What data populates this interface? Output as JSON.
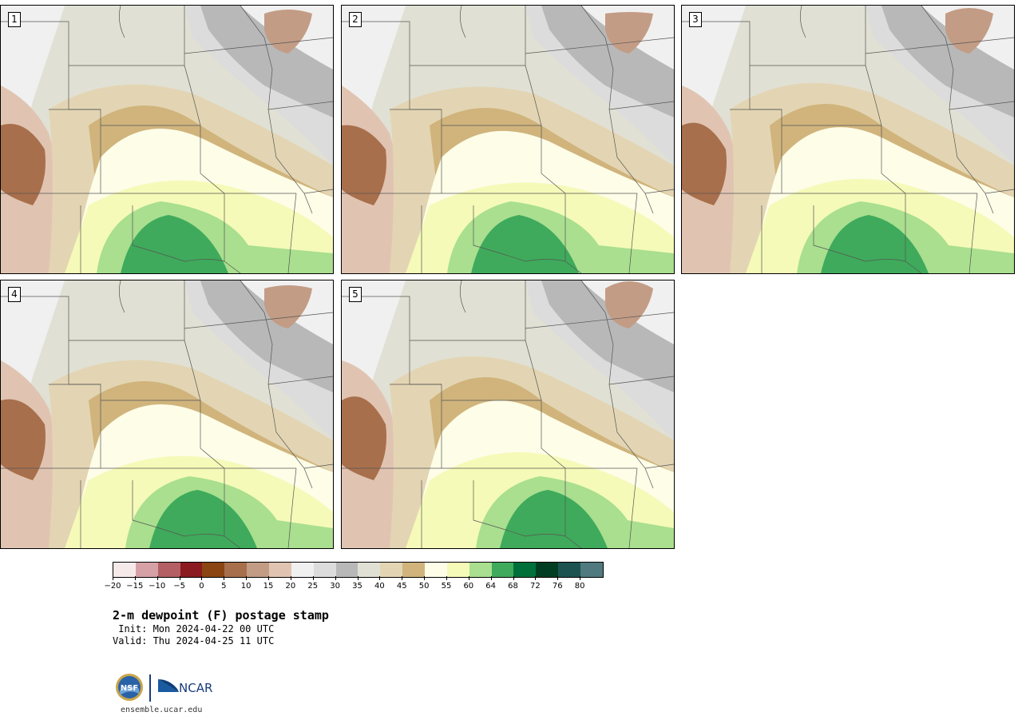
{
  "panels": [
    {
      "label": "1",
      "variant": 0
    },
    {
      "label": "2",
      "variant": 1
    },
    {
      "label": "3",
      "variant": 2
    },
    {
      "label": "4",
      "variant": 3
    },
    {
      "label": "5",
      "variant": 4
    }
  ],
  "colorbar": {
    "colors": [
      "#f6e9ea",
      "#d6a1a6",
      "#b35f63",
      "#8b1a21",
      "#8b4513",
      "#a86f4c",
      "#c39c85",
      "#e0c4b1",
      "#f0f0f0",
      "#dcdcdc",
      "#b8b8b8",
      "#e0e0d4",
      "#e3d5b3",
      "#d0b47c",
      "#fdfde8",
      "#f5fab8",
      "#a9df8f",
      "#3faa5b",
      "#00703a",
      "#003d22",
      "#1c5350",
      "#517a80"
    ],
    "tick_labels": [
      "−20",
      "−15",
      "−10",
      "−5",
      "0",
      "5",
      "10",
      "15",
      "20",
      "25",
      "30",
      "35",
      "40",
      "45",
      "50",
      "55",
      "60",
      "64",
      "68",
      "72",
      "76",
      "80"
    ]
  },
  "title": "2-m dewpoint (F) postage stamp",
  "init": " Init: Mon 2024-04-22 00 UTC",
  "valid": "Valid: Thu 2024-04-25 11 UTC",
  "logos": {
    "nsf": "NSF",
    "ncar": "NCAR"
  },
  "site": "ensemble.ucar.edu"
}
